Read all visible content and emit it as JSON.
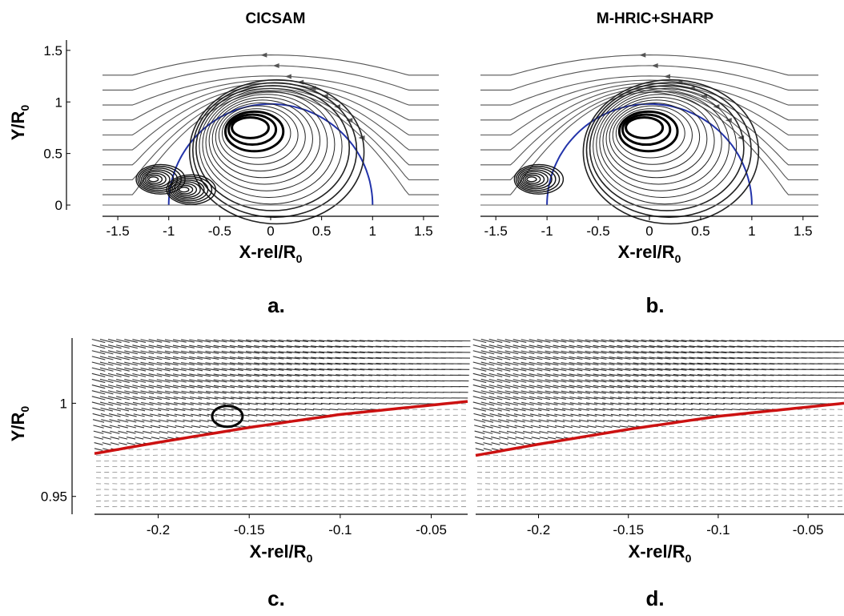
{
  "column_titles": [
    "CICSAM",
    "M-HRIC+SHARP"
  ],
  "chart_data": [
    {
      "type": "streamline",
      "panel_label": "a.",
      "title": "CICSAM",
      "xlabel": "X-rel/R",
      "xlabel_sub": "0",
      "ylabel": "Y/R",
      "ylabel_sub": "0",
      "xlim": [
        -1.65,
        1.65
      ],
      "ylim": [
        0,
        1.6
      ],
      "xticks": [
        -1.5,
        -1,
        -0.5,
        0,
        0.5,
        1,
        1.5
      ],
      "xtick_labels": [
        "-1.5",
        "-1",
        "-0.5",
        "0",
        "0.5",
        "1",
        "1.5"
      ],
      "yticks": [
        0,
        0.5,
        1,
        1.5
      ],
      "ytick_labels": [
        "0",
        "0.5",
        "1",
        "1.5"
      ],
      "interface_radius": 1.0,
      "vortex_center": [
        -0.2,
        0.75
      ],
      "secondary_vortex_centers": [
        [
          -1.15,
          0.25
        ],
        [
          -0.85,
          0.15
        ]
      ],
      "colors": {
        "streamline": "#555555",
        "interface": "#2233aa",
        "core": "#000000"
      }
    },
    {
      "type": "streamline",
      "panel_label": "b.",
      "title": "M-HRIC+SHARP",
      "xlabel": "X-rel/R",
      "xlabel_sub": "0",
      "ylabel": "",
      "ylabel_sub": "",
      "xlim": [
        -1.65,
        1.65
      ],
      "ylim": [
        0,
        1.6
      ],
      "xticks": [
        -1.5,
        -1,
        -0.5,
        0,
        0.5,
        1,
        1.5
      ],
      "xtick_labels": [
        "-1.5",
        "-1",
        "-0.5",
        "0",
        "0.5",
        "1",
        "1.5"
      ],
      "yticks": [],
      "ytick_labels": [],
      "interface_radius": 1.0,
      "vortex_center": [
        -0.05,
        0.75
      ],
      "secondary_vortex_centers": [
        [
          -1.15,
          0.25
        ]
      ],
      "colors": {
        "streamline": "#555555",
        "interface": "#2233aa",
        "core": "#000000"
      }
    },
    {
      "type": "vector",
      "panel_label": "c.",
      "xlabel": "X-rel/R",
      "xlabel_sub": "0",
      "ylabel": "Y/R",
      "ylabel_sub": "0",
      "xlim": [
        -0.235,
        -0.03
      ],
      "ylim": [
        0.943,
        1.035
      ],
      "xticks": [
        -0.2,
        -0.15,
        -0.1,
        -0.05
      ],
      "xtick_labels": [
        "-0.2",
        "-0.15",
        "-0.1",
        "-0.05"
      ],
      "yticks": [
        0.95,
        1
      ],
      "ytick_labels": [
        "0.95",
        "1"
      ],
      "interface_curve": {
        "x": [
          -0.235,
          -0.2,
          -0.15,
          -0.1,
          -0.05,
          -0.03
        ],
        "y": [
          0.973,
          0.979,
          0.987,
          0.994,
          0.999,
          1.001
        ]
      },
      "highlight_ellipse": {
        "x": -0.162,
        "y": 0.993
      },
      "colors": {
        "vector": "#444444",
        "interface": "#cc1111"
      }
    },
    {
      "type": "vector",
      "panel_label": "d.",
      "xlabel": "X-rel/R",
      "xlabel_sub": "0",
      "ylabel": "",
      "ylabel_sub": "",
      "xlim": [
        -0.235,
        -0.03
      ],
      "ylim": [
        0.943,
        1.035
      ],
      "xticks": [
        -0.2,
        -0.15,
        -0.1,
        -0.05
      ],
      "xtick_labels": [
        "-0.2",
        "-0.15",
        "-0.1",
        "-0.05"
      ],
      "yticks": [],
      "ytick_labels": [],
      "interface_curve": {
        "x": [
          -0.235,
          -0.2,
          -0.15,
          -0.1,
          -0.05,
          -0.03
        ],
        "y": [
          0.972,
          0.978,
          0.986,
          0.993,
          0.998,
          1.0
        ]
      },
      "colors": {
        "vector": "#444444",
        "interface": "#cc1111"
      }
    }
  ]
}
